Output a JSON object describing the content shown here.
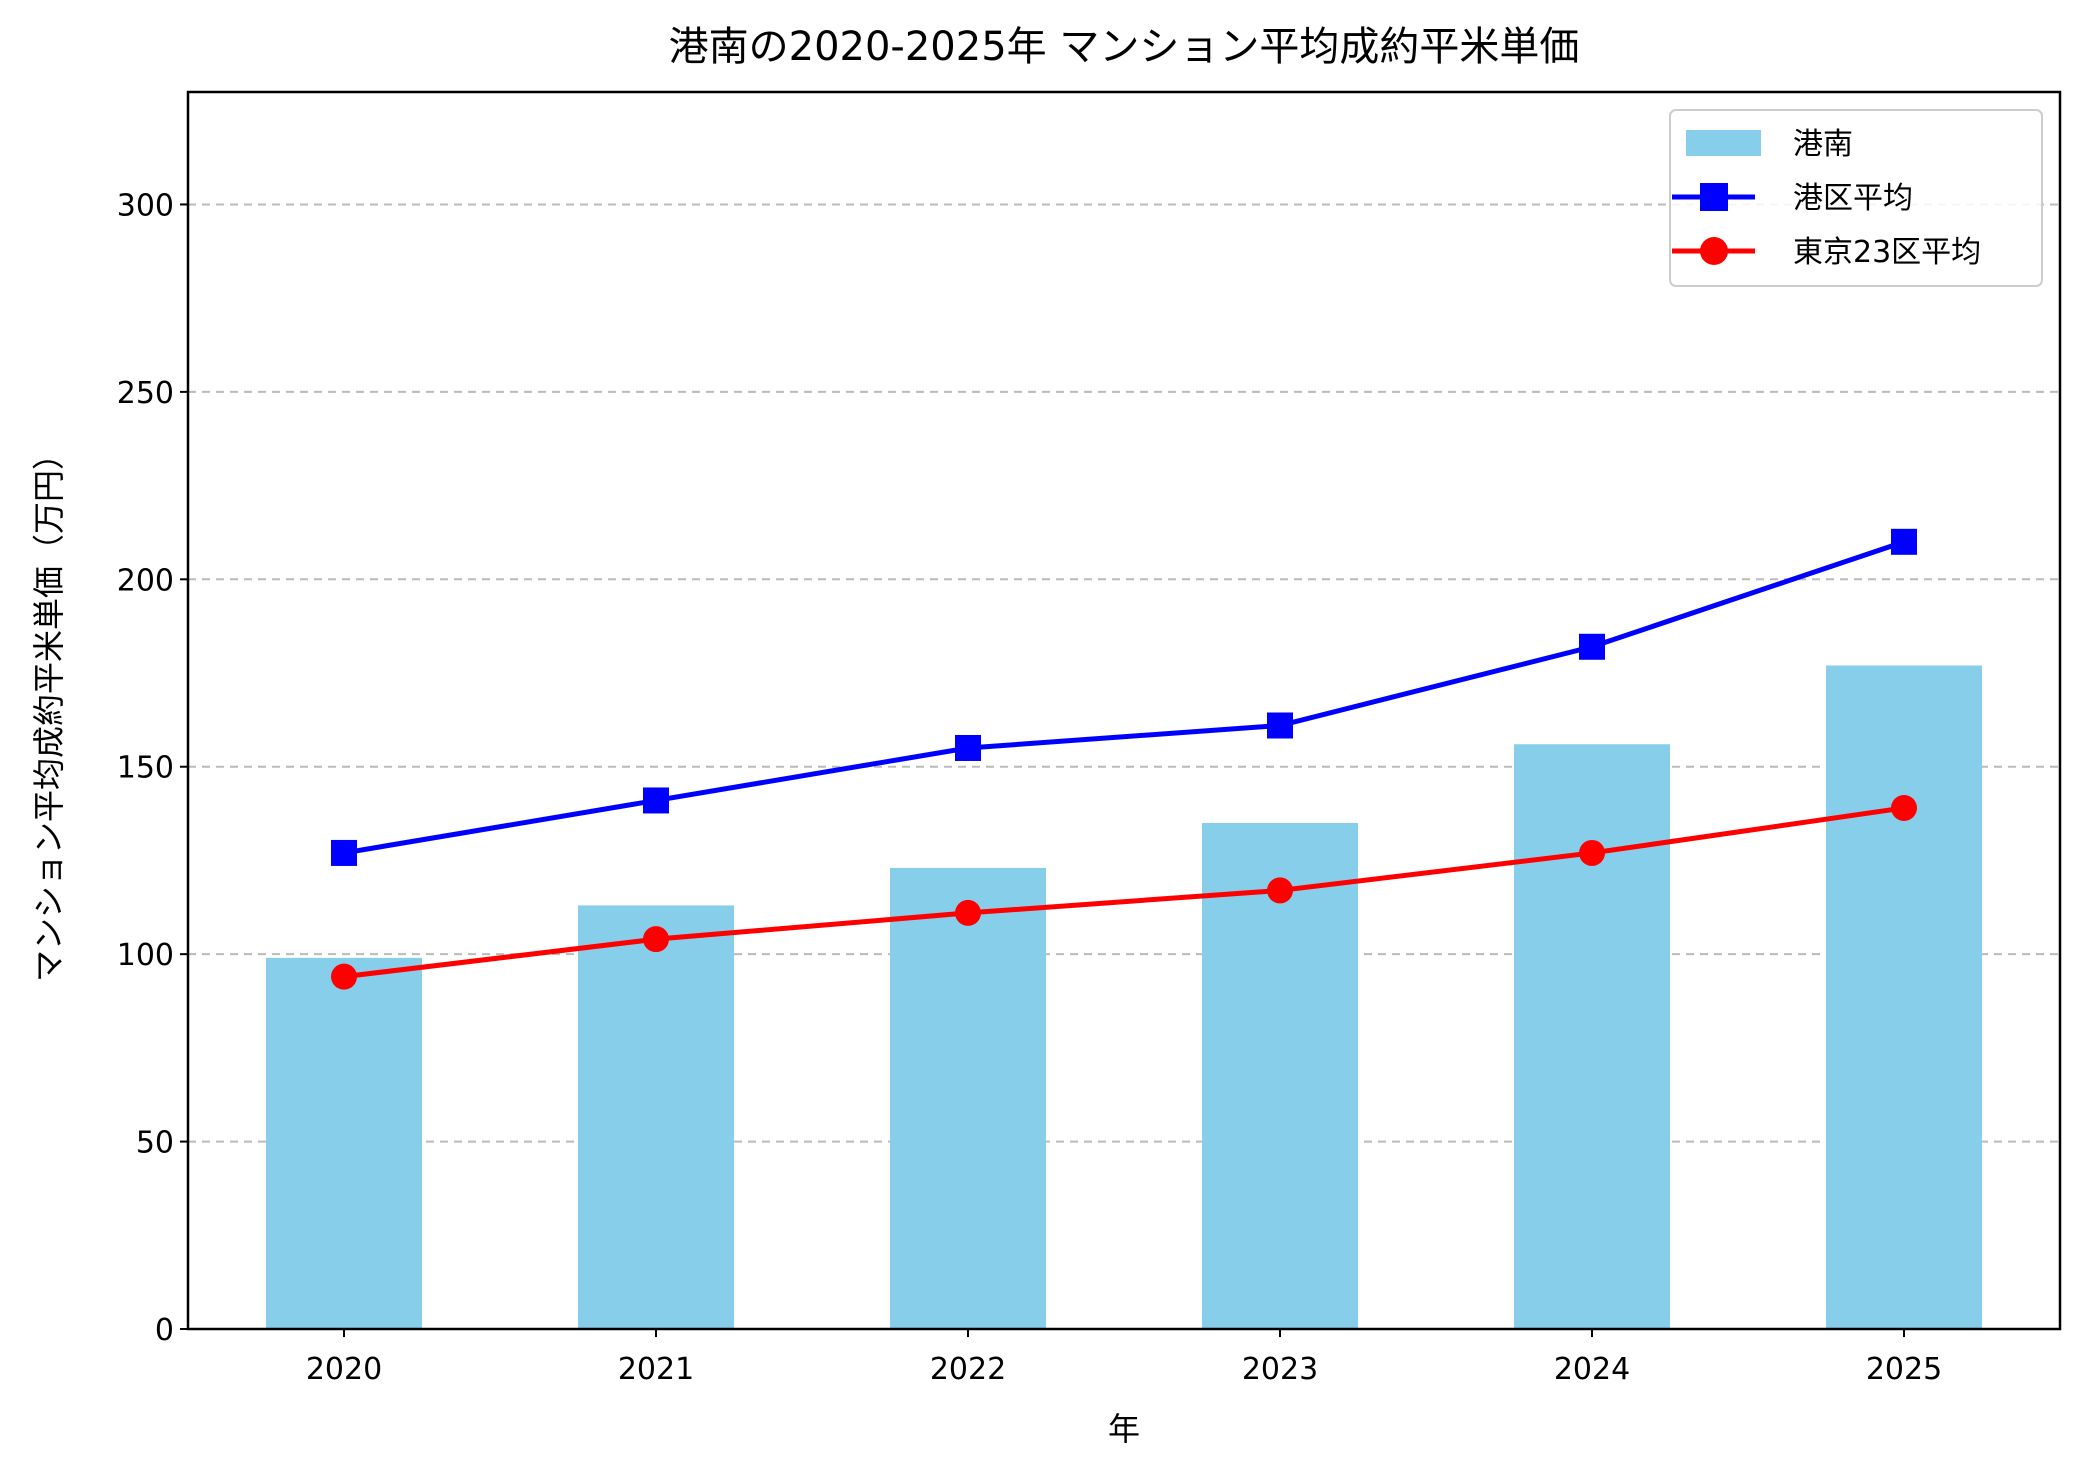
{
  "chart_data": {
    "type": "bar",
    "title": "港南の2020-2025年 マンション平均成約平米単価",
    "xlabel": "年",
    "ylabel": "マンション平均成約平米単価（万円）",
    "categories": [
      "2020",
      "2021",
      "2022",
      "2023",
      "2024",
      "2025"
    ],
    "ylim": [
      0,
      330
    ],
    "yticks": [
      0,
      50,
      100,
      150,
      200,
      250,
      300
    ],
    "grid": "y-dashed",
    "legend_position": "top-right",
    "series": [
      {
        "name": "港南",
        "kind": "bar",
        "color": "#87CEEB",
        "values": [
          99,
          113,
          123,
          135,
          156,
          177
        ]
      },
      {
        "name": "港区平均",
        "kind": "line",
        "marker": "square",
        "color": "#0000FF",
        "values": [
          127,
          141,
          155,
          161,
          182,
          210
        ]
      },
      {
        "name": "東京23区平均",
        "kind": "line",
        "marker": "circle",
        "color": "#FF0000",
        "values": [
          94,
          104,
          111,
          117,
          127,
          139
        ]
      }
    ]
  }
}
